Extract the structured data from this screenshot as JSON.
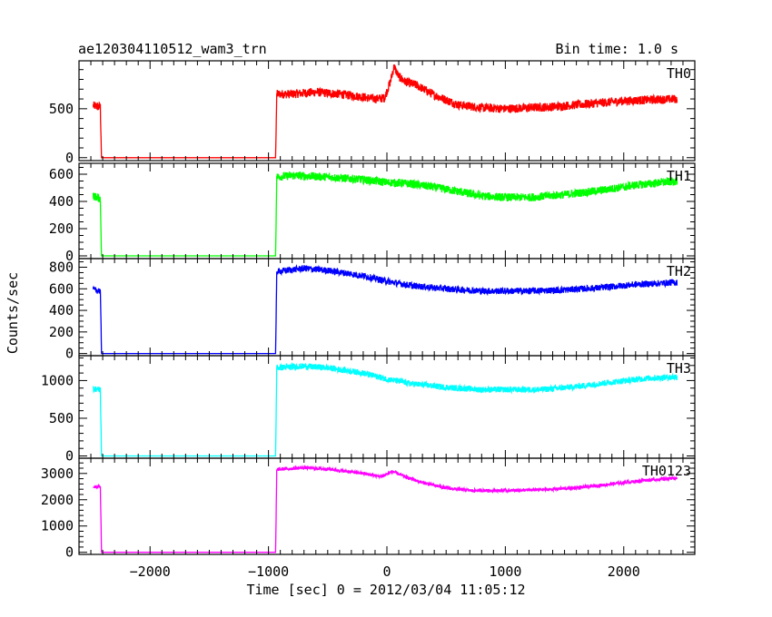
{
  "chart_data": {
    "type": "line",
    "title": "ae120304110512_wam3_trn",
    "subtitle": "Bin time: 1.0 s",
    "xlabel": "Time [sec] 0 = 2012/03/04 11:05:12",
    "ylabel": "Counts/sec",
    "xlim": [
      -2600,
      2600
    ],
    "xticks": [
      -2000,
      -1000,
      0,
      1000,
      2000
    ],
    "grid": false,
    "panels": [
      {
        "name": "TH0",
        "color": "#ff0000",
        "ylim": [
          -30,
          990
        ],
        "yticks": [
          0,
          500
        ],
        "noise": 45,
        "x": [
          -2480,
          -2420,
          -2410,
          -940,
          -930,
          -800,
          -600,
          -400,
          -200,
          -100,
          -20,
          30,
          60,
          100,
          150,
          250,
          400,
          600,
          800,
          1000,
          1200,
          1400,
          1600,
          1800,
          2000,
          2200,
          2450
        ],
        "y": [
          530,
          520,
          0,
          0,
          650,
          650,
          670,
          650,
          620,
          600,
          610,
          780,
          930,
          830,
          780,
          740,
          640,
          540,
          510,
          500,
          510,
          520,
          540,
          560,
          580,
          590,
          600
        ]
      },
      {
        "name": "TH1",
        "color": "#00ff00",
        "ylim": [
          -20,
          680
        ],
        "yticks": [
          0,
          200,
          400,
          600
        ],
        "noise": 30,
        "x": [
          -2480,
          -2420,
          -2410,
          -940,
          -930,
          -800,
          -500,
          -200,
          0,
          200,
          500,
          800,
          1000,
          1200,
          1500,
          1800,
          2100,
          2450
        ],
        "y": [
          440,
          420,
          0,
          0,
          580,
          590,
          580,
          560,
          540,
          530,
          490,
          440,
          430,
          430,
          450,
          480,
          520,
          550
        ]
      },
      {
        "name": "TH2",
        "color": "#0000ff",
        "ylim": [
          -20,
          880
        ],
        "yticks": [
          0,
          200,
          400,
          600,
          800
        ],
        "noise": 30,
        "x": [
          -2480,
          -2420,
          -2410,
          -940,
          -930,
          -700,
          -500,
          -200,
          0,
          200,
          500,
          800,
          1000,
          1200,
          1500,
          1800,
          2100,
          2450
        ],
        "y": [
          590,
          580,
          0,
          0,
          760,
          790,
          770,
          720,
          670,
          630,
          600,
          580,
          580,
          580,
          590,
          610,
          640,
          660
        ]
      },
      {
        "name": "TH3",
        "color": "#00ffff",
        "ylim": [
          -30,
          1330
        ],
        "yticks": [
          0,
          500,
          1000
        ],
        "noise": 40,
        "x": [
          -2480,
          -2420,
          -2410,
          -940,
          -930,
          -700,
          -500,
          -200,
          0,
          200,
          500,
          800,
          1000,
          1300,
          1600,
          1900,
          2200,
          2450
        ],
        "y": [
          890,
          880,
          0,
          0,
          1170,
          1190,
          1170,
          1100,
          1020,
          960,
          910,
          880,
          880,
          880,
          920,
          980,
          1030,
          1050
        ]
      },
      {
        "name": "TH0123",
        "color": "#ff00ff",
        "ylim": [
          -80,
          3580
        ],
        "yticks": [
          0,
          1000,
          2000,
          3000
        ],
        "noise": 60,
        "x": [
          -2480,
          -2420,
          -2410,
          -940,
          -930,
          -700,
          -500,
          -200,
          -50,
          50,
          150,
          300,
          500,
          700,
          1000,
          1300,
          1600,
          1900,
          2200,
          2450
        ],
        "y": [
          2500,
          2480,
          0,
          0,
          3150,
          3220,
          3170,
          3000,
          2880,
          3080,
          2880,
          2650,
          2450,
          2350,
          2350,
          2380,
          2450,
          2600,
          2750,
          2820
        ]
      }
    ]
  }
}
